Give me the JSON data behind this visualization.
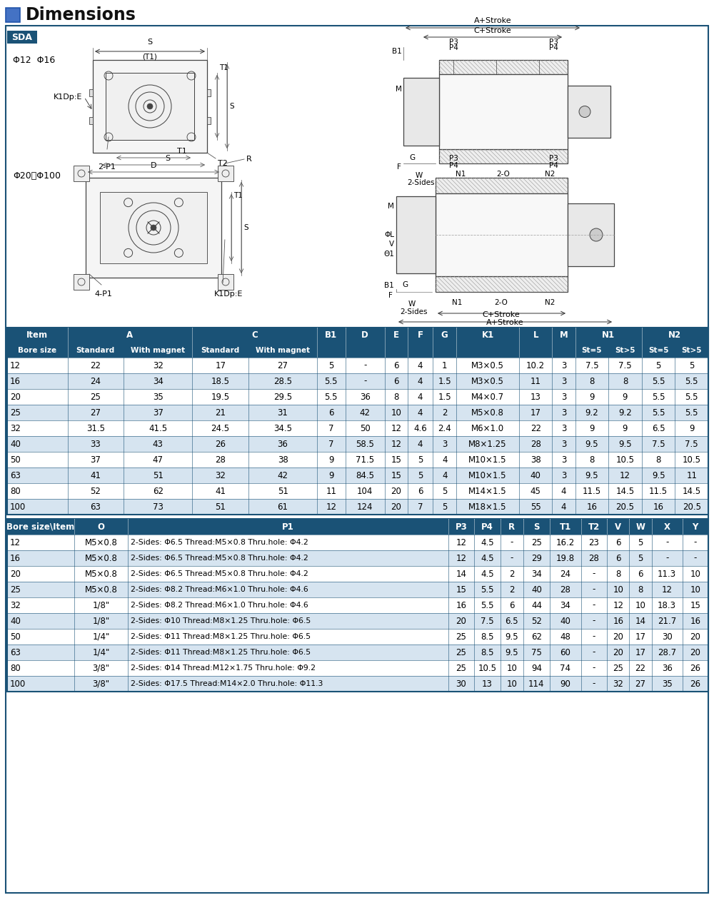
{
  "title": "Dimensions",
  "subtitle_tag": "SDA",
  "header_bg": "#1a5276",
  "header_fg": "#ffffff",
  "row_bg_even": "#d6e4f0",
  "row_bg_odd": "#ffffff",
  "border_color": "#1a5276",
  "text_color": "#000000",
  "title_color": "#000000",
  "icon_color": "#4472c4",
  "table1_rows": [
    [
      "12",
      "22",
      "32",
      "17",
      "27",
      "5",
      "-",
      "6",
      "4",
      "1",
      "M3×0.5",
      "10.2",
      "3",
      "7.5",
      "7.5",
      "5",
      "5"
    ],
    [
      "16",
      "24",
      "34",
      "18.5",
      "28.5",
      "5.5",
      "-",
      "6",
      "4",
      "1.5",
      "M3×0.5",
      "11",
      "3",
      "8",
      "8",
      "5.5",
      "5.5"
    ],
    [
      "20",
      "25",
      "35",
      "19.5",
      "29.5",
      "5.5",
      "36",
      "8",
      "4",
      "1.5",
      "M4×0.7",
      "13",
      "3",
      "9",
      "9",
      "5.5",
      "5.5"
    ],
    [
      "25",
      "27",
      "37",
      "21",
      "31",
      "6",
      "42",
      "10",
      "4",
      "2",
      "M5×0.8",
      "17",
      "3",
      "9.2",
      "9.2",
      "5.5",
      "5.5"
    ],
    [
      "32",
      "31.5",
      "41.5",
      "24.5",
      "34.5",
      "7",
      "50",
      "12",
      "4.6",
      "2.4",
      "M6×1.0",
      "22",
      "3",
      "9",
      "9",
      "6.5",
      "9"
    ],
    [
      "40",
      "33",
      "43",
      "26",
      "36",
      "7",
      "58.5",
      "12",
      "4",
      "3",
      "M8×1.25",
      "28",
      "3",
      "9.5",
      "9.5",
      "7.5",
      "7.5"
    ],
    [
      "50",
      "37",
      "47",
      "28",
      "38",
      "9",
      "71.5",
      "15",
      "5",
      "4",
      "M10×1.5",
      "38",
      "3",
      "8",
      "10.5",
      "8",
      "10.5"
    ],
    [
      "63",
      "41",
      "51",
      "32",
      "42",
      "9",
      "84.5",
      "15",
      "5",
      "4",
      "M10×1.5",
      "40",
      "3",
      "9.5",
      "12",
      "9.5",
      "11"
    ],
    [
      "80",
      "52",
      "62",
      "41",
      "51",
      "11",
      "104",
      "20",
      "6",
      "5",
      "M14×1.5",
      "45",
      "4",
      "11.5",
      "14.5",
      "11.5",
      "14.5"
    ],
    [
      "100",
      "63",
      "73",
      "51",
      "61",
      "12",
      "124",
      "20",
      "7",
      "5",
      "M18×1.5",
      "55",
      "4",
      "16",
      "20.5",
      "16",
      "20.5"
    ]
  ],
  "table2_rows": [
    [
      "12",
      "M5×0.8",
      "2-Sides: Φ6.5 Thread:M5×0.8 Thru.hole: Φ4.2",
      "12",
      "4.5",
      "-",
      "25",
      "16.2",
      "23",
      "6",
      "5",
      "-",
      "-"
    ],
    [
      "16",
      "M5×0.8",
      "2-Sides: Φ6.5 Thread:M5×0.8 Thru.hole: Φ4.2",
      "12",
      "4.5",
      "-",
      "29",
      "19.8",
      "28",
      "6",
      "5",
      "-",
      "-"
    ],
    [
      "20",
      "M5×0.8",
      "2-Sides: Φ6.5 Thread:M5×0.8 Thru.hole: Φ4.2",
      "14",
      "4.5",
      "2",
      "34",
      "24",
      "-",
      "8",
      "6",
      "11.3",
      "10"
    ],
    [
      "25",
      "M5×0.8",
      "2-Sides: Φ8.2 Thread:M6×1.0 Thru.hole: Φ4.6",
      "15",
      "5.5",
      "2",
      "40",
      "28",
      "-",
      "10",
      "8",
      "12",
      "10"
    ],
    [
      "32",
      "1/8\"",
      "2-Sides: Φ8.2 Thread:M6×1.0 Thru.hole: Φ4.6",
      "16",
      "5.5",
      "6",
      "44",
      "34",
      "-",
      "12",
      "10",
      "18.3",
      "15"
    ],
    [
      "40",
      "1/8\"",
      "2-Sides: Φ10 Thread:M8×1.25 Thru.hole: Φ6.5",
      "20",
      "7.5",
      "6.5",
      "52",
      "40",
      "-",
      "16",
      "14",
      "21.7",
      "16"
    ],
    [
      "50",
      "1/4\"",
      "2-Sides: Φ11 Thread:M8×1.25 Thru.hole: Φ6.5",
      "25",
      "8.5",
      "9.5",
      "62",
      "48",
      "-",
      "20",
      "17",
      "30",
      "20"
    ],
    [
      "63",
      "1/4\"",
      "2-Sides: Φ11 Thread:M8×1.25 Thru.hole: Φ6.5",
      "25",
      "8.5",
      "9.5",
      "75",
      "60",
      "-",
      "20",
      "17",
      "28.7",
      "20"
    ],
    [
      "80",
      "3/8\"",
      "2-Sides: Φ14 Thread:M12×1.75 Thru.hole: Φ9.2",
      "25",
      "10.5",
      "10",
      "94",
      "74",
      "-",
      "25",
      "22",
      "36",
      "26"
    ],
    [
      "100",
      "3/8\"",
      "2-Sides: Φ17.5 Thread:M14×2.0 Thru.hole: Φ11.3",
      "30",
      "13",
      "10",
      "114",
      "90",
      "-",
      "32",
      "27",
      "35",
      "26"
    ]
  ]
}
